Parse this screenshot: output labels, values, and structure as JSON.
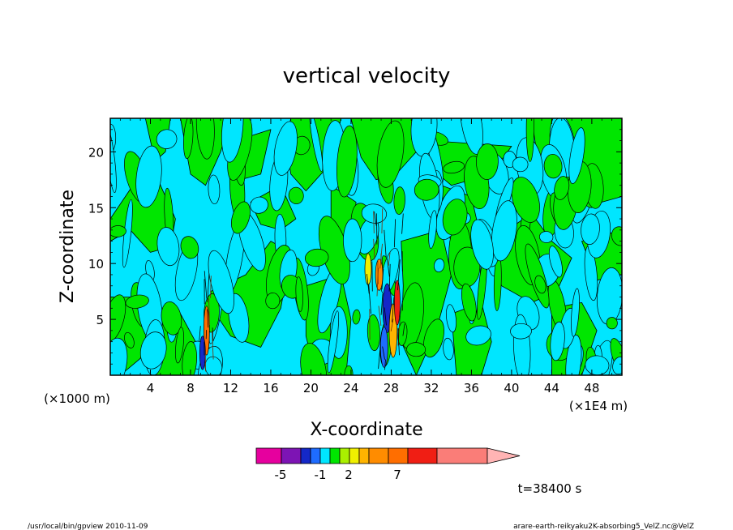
{
  "chart_data": {
    "type": "heatmap",
    "title": "vertical velocity",
    "xlabel": "X-coordinate",
    "ylabel": "Z-coordinate",
    "x_unit": "(×1E4 m)",
    "y_unit": "(×1000 m)",
    "xlim": [
      0,
      51
    ],
    "ylim": [
      0,
      23
    ],
    "x_ticks": [
      4,
      8,
      12,
      16,
      20,
      24,
      28,
      32,
      36,
      40,
      44,
      48
    ],
    "y_ticks": [
      5,
      10,
      15,
      20
    ],
    "colorbar": {
      "colors": [
        "#e6009e",
        "#7d14b4",
        "#1428c8",
        "#1e6cff",
        "#00e6ff",
        "#00e600",
        "#aaf000",
        "#f0f000",
        "#ffb400",
        "#ff8c00",
        "#ff6e00",
        "#f01e14",
        "#fa7d78",
        "#ffb4b4"
      ],
      "labels": [
        "-5",
        "-1",
        "2",
        "7"
      ]
    },
    "dominant_colors": {
      "negative": "#00e6ff",
      "positive": "#00e600"
    },
    "time_label": "t=38400 s"
  },
  "footer": {
    "left": "/usr/local/bin/gpview   2010-11-09",
    "right": "arare-earth-reikyaku2K-absorbing5_VelZ.nc@VelZ"
  }
}
